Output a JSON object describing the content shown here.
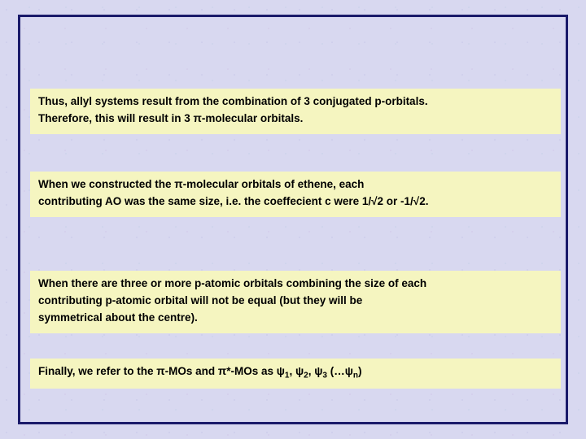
{
  "slide": {
    "background_color": "#d8d8f0",
    "frame_border_color": "#1a1a6a",
    "textbox_background": "#f5f5c0",
    "font_family": "Arial",
    "font_size_pt": 13.5,
    "font_weight": "bold",
    "text_color": "#000000"
  },
  "paragraphs": {
    "p1_line1": "Thus, allyl systems result from the combination of 3 conjugated p-orbitals.",
    "p1_line2": "Therefore, this will result in 3 π-molecular orbitals.",
    "p2_line1": "When we constructed the π-molecular orbitals of ethene, each",
    "p2_line2": "contributing AO was the same size, i.e. the coeffecient c were 1/√2 or -1/√2.",
    "p3_line1": "When there are three or more p-atomic orbitals combining the size of each",
    "p3_line2": "contributing p-atomic orbital will not be equal (but they will be",
    "p3_line3": "symmetrical about the centre).",
    "p4_prefix": "Finally, we refer to the π-MOs and π*-MOs as ψ",
    "p4_sub1": "1",
    "p4_mid1": ", ψ",
    "p4_sub2": "2",
    "p4_mid2": ", ψ",
    "p4_sub3": "3",
    "p4_mid3": " (…ψ",
    "p4_subn": "n",
    "p4_suffix": ")"
  }
}
